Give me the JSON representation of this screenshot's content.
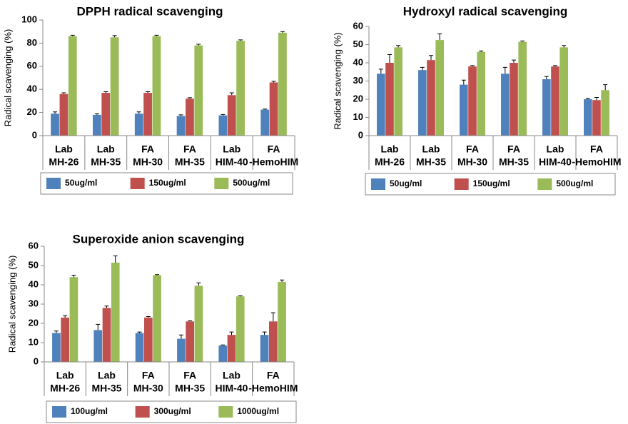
{
  "chart_data": [
    {
      "type": "bar",
      "title": "DPPH radical scavenging",
      "y_label": "Radical scavenging (%)",
      "categories": [
        [
          "Lab",
          "MH-26"
        ],
        [
          "Lab",
          "MH-35"
        ],
        [
          "FA",
          "MH-30"
        ],
        [
          "FA",
          "MH-35"
        ],
        [
          "Lab",
          "HIM-40"
        ],
        [
          "FA",
          "-HemoHIM"
        ]
      ],
      "series": [
        {
          "name": "50ug/ml",
          "color": "#4f81bd",
          "values": [
            19,
            18,
            19,
            17,
            17.5,
            22.5
          ],
          "errors": [
            1.5,
            0.8,
            1.5,
            1,
            0.8,
            0.5
          ]
        },
        {
          "name": "150ug/ml",
          "color": "#c0504d",
          "values": [
            36,
            37,
            37,
            32,
            35,
            46
          ],
          "errors": [
            1,
            1,
            1,
            0.8,
            2,
            1
          ]
        },
        {
          "name": "500ug/ml",
          "color": "#9bbb59",
          "values": [
            86,
            85,
            86,
            78,
            82,
            89
          ],
          "errors": [
            0.8,
            1.5,
            0.8,
            1,
            0.8,
            1
          ]
        }
      ],
      "ylim": [
        0,
        100
      ],
      "yticks": [
        0,
        20,
        40,
        60,
        80,
        100
      ]
    },
    {
      "type": "bar",
      "title": "Hydroxyl radical scavenging",
      "y_label": "Radical scavenging (%)",
      "categories": [
        [
          "Lab",
          "MH-26"
        ],
        [
          "Lab",
          "MH-35"
        ],
        [
          "FA",
          "MH-30"
        ],
        [
          "FA",
          "MH-35"
        ],
        [
          "Lab",
          "HIM-40"
        ],
        [
          "FA",
          "-HemoHIM"
        ]
      ],
      "series": [
        {
          "name": "50ug/ml",
          "color": "#4f81bd",
          "values": [
            34,
            36,
            28,
            34,
            31,
            20
          ],
          "errors": [
            2.5,
            1.5,
            2.5,
            3.5,
            1.5,
            0.5
          ]
        },
        {
          "name": "150ug/ml",
          "color": "#c0504d",
          "values": [
            40,
            41.5,
            38,
            40,
            38,
            19.5
          ],
          "errors": [
            4.5,
            2.5,
            0.5,
            1.5,
            0.5,
            1.5
          ]
        },
        {
          "name": "500ug/ml",
          "color": "#9bbb59",
          "values": [
            48.5,
            52.5,
            46,
            51.5,
            48.5,
            25
          ],
          "errors": [
            1,
            3.5,
            0.5,
            0.5,
            1,
            3
          ]
        }
      ],
      "ylim": [
        0,
        60
      ],
      "yticks": [
        0,
        10,
        20,
        30,
        40,
        50,
        60
      ]
    },
    {
      "type": "bar",
      "title": "Superoxide anion scavenging",
      "y_label": "Radical scavenging (%)",
      "categories": [
        [
          "Lab",
          "MH-26"
        ],
        [
          "Lab",
          "MH-35"
        ],
        [
          "FA",
          "MH-30"
        ],
        [
          "FA",
          "MH-35"
        ],
        [
          "Lab",
          "HIM-40"
        ],
        [
          "FA",
          "-HemoHIM"
        ]
      ],
      "series": [
        {
          "name": "100ug/ml",
          "color": "#4f81bd",
          "values": [
            15,
            16.5,
            15,
            12,
            8.5,
            14
          ],
          "errors": [
            1,
            3,
            0.5,
            2,
            0.3,
            1.5
          ]
        },
        {
          "name": "300ug/ml",
          "color": "#c0504d",
          "values": [
            23,
            28,
            23,
            21,
            14,
            21
          ],
          "errors": [
            1,
            1,
            0.5,
            0.3,
            1.5,
            4.5
          ]
        },
        {
          "name": "1000ug/ml",
          "color": "#9bbb59",
          "values": [
            44,
            51.5,
            45,
            39.5,
            34,
            41.5
          ],
          "errors": [
            1,
            3.5,
            0.3,
            1.5,
            0.3,
            1
          ]
        }
      ],
      "ylim": [
        0,
        60
      ],
      "yticks": [
        0,
        10,
        20,
        30,
        40,
        50,
        60
      ]
    }
  ]
}
